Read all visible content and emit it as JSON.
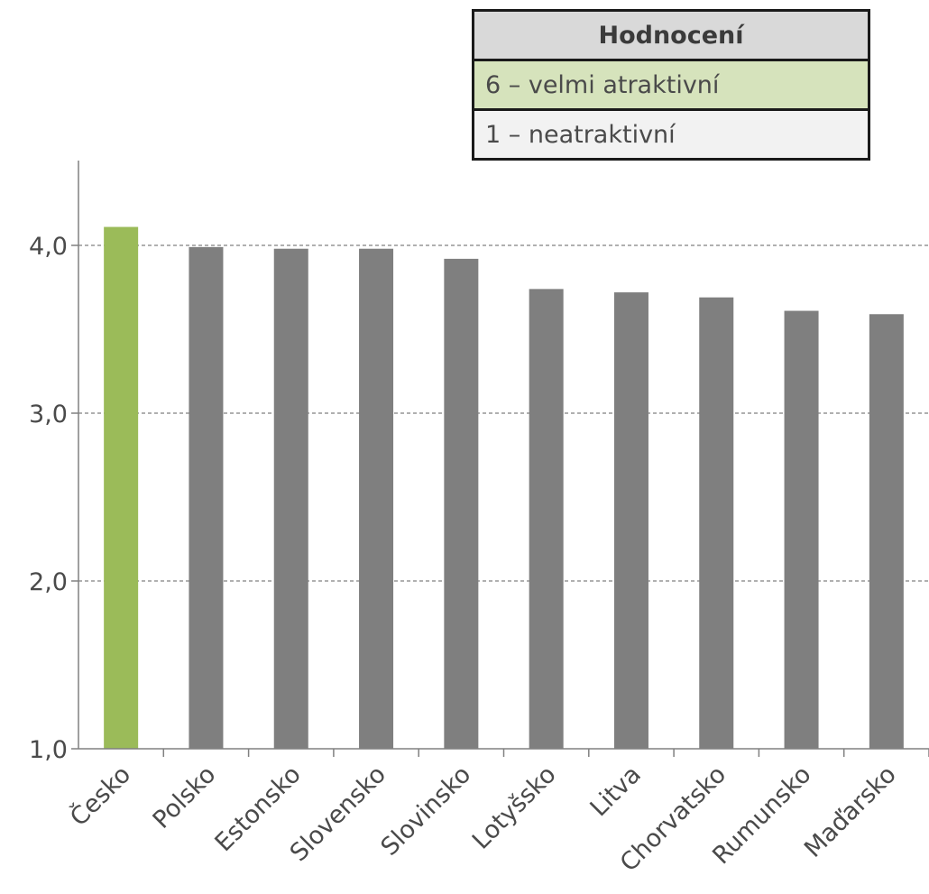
{
  "legend": {
    "header": "Hodnocení",
    "high_label": "6 – velmi atraktivní",
    "low_label": "1 – neatraktivní",
    "high_color": "#d6e3bc",
    "header_color": "#d9d9d9",
    "low_color": "#f2f2f2"
  },
  "chart_data": {
    "type": "bar",
    "categories": [
      "Česko",
      "Polsko",
      "Estonsko",
      "Slovensko",
      "Slovinsko",
      "Lotyšsko",
      "Litva",
      "Chorvatsko",
      "Rumunsko",
      "Maďarsko"
    ],
    "values": [
      4.11,
      3.99,
      3.98,
      3.98,
      3.92,
      3.74,
      3.72,
      3.69,
      3.61,
      3.59
    ],
    "ylim": [
      1,
      4.5
    ],
    "yticks": [
      1,
      2,
      3,
      4
    ],
    "ytick_labels": [
      "1,0",
      "2,0",
      "3,0",
      "4,0"
    ],
    "gridlines": "dashed",
    "highlight_color": "#9bbb59",
    "bar_color": "#7f7f7f",
    "highlight_index": 0
  }
}
